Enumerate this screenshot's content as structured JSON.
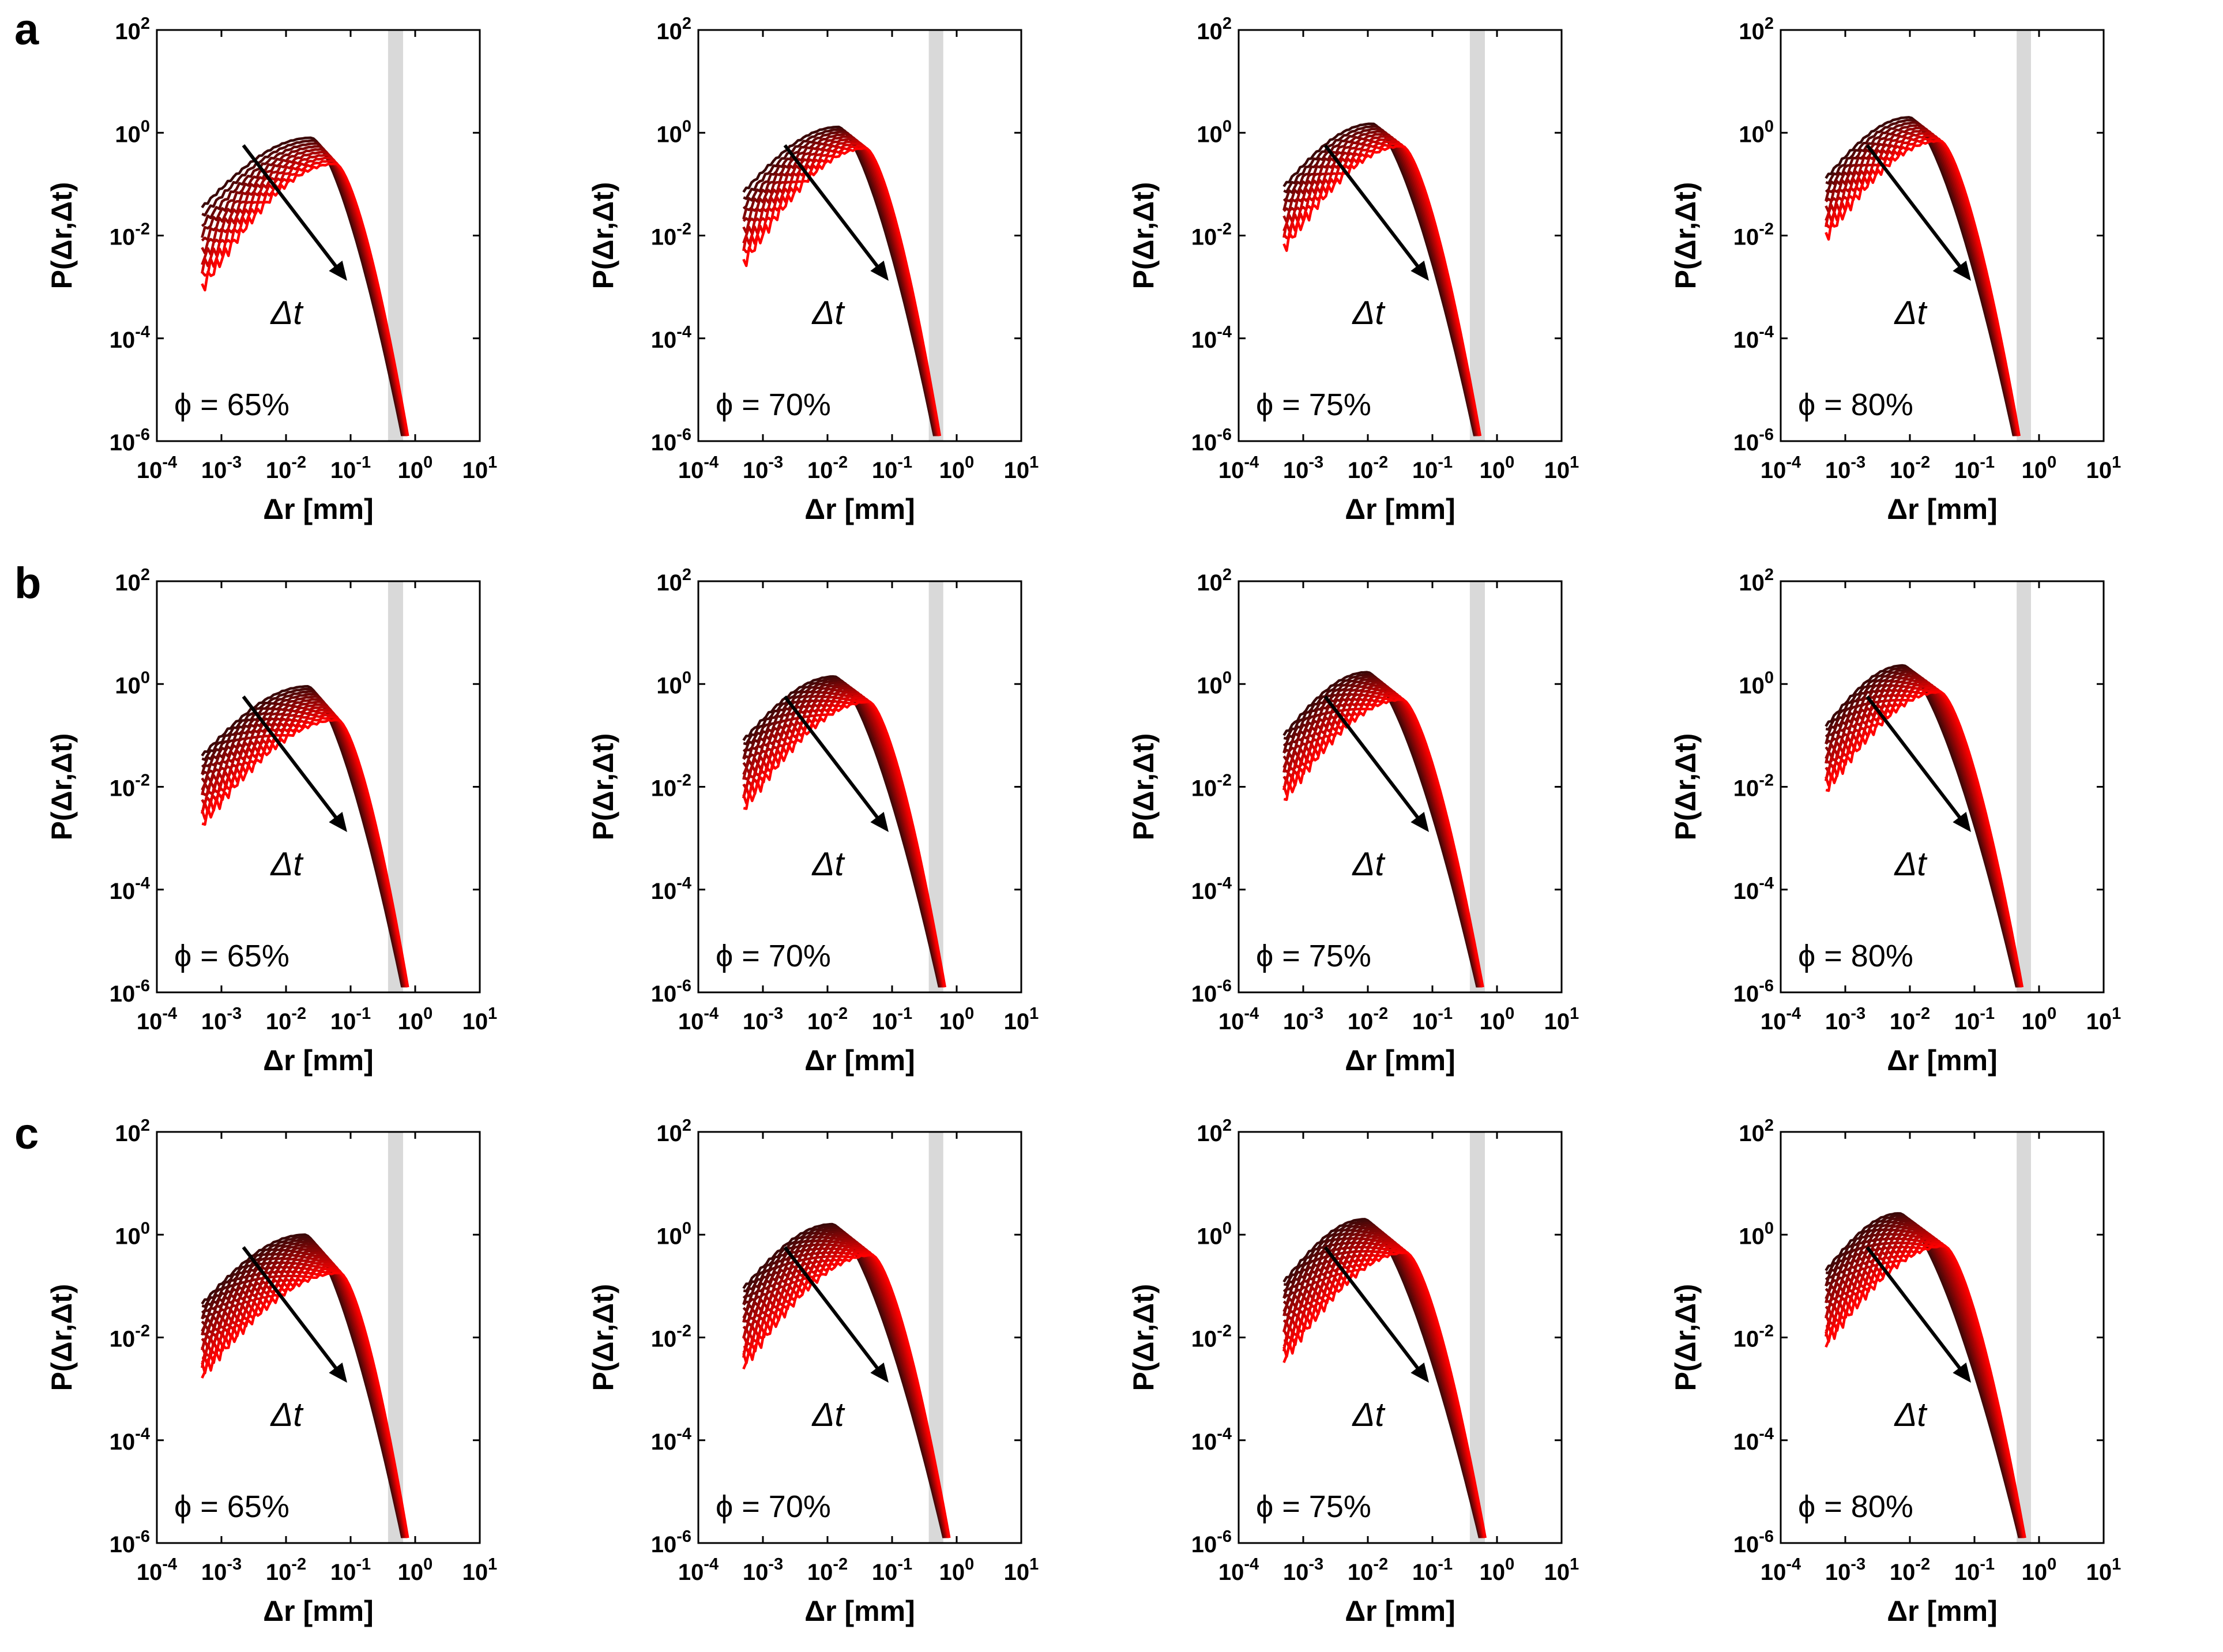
{
  "figure": {
    "rows": [
      {
        "label": "a",
        "max_curves": 10
      },
      {
        "label": "b",
        "max_curves": 14
      },
      {
        "label": "c",
        "max_curves": 18
      }
    ],
    "columns": [
      {
        "phi_label": "ϕ = 65%",
        "phi": 65
      },
      {
        "phi_label": "ϕ = 70%",
        "phi": 70
      },
      {
        "phi_label": "ϕ = 75%",
        "phi": 75
      },
      {
        "phi_label": "ϕ = 80%",
        "phi": 80
      }
    ],
    "xlabel": "Δr [mm]",
    "ylabel": "P(Δr,Δt)",
    "arrow_label": "Δt",
    "x_tick_exponents": [
      "-4",
      "-3",
      "-2",
      "-1",
      "0",
      "1"
    ],
    "y_tick_exponents": [
      "2",
      "0",
      "-2",
      "-4",
      "-6"
    ],
    "tick_base": "10",
    "colors": {
      "dark": "#3a0808",
      "bright": "#ff0000",
      "band": "#d9d9d9",
      "axis": "#000000"
    }
  },
  "chart_data": {
    "type": "line",
    "scale": "log-log",
    "xlabel": "Δr [mm]",
    "ylabel": "P(Δr,Δt)",
    "xlim": [
      0.0001,
      10
    ],
    "ylim": [
      1e-06,
      100
    ],
    "curve_start_x": 0.0005,
    "shaded_band_x": {
      "65": [
        0.38,
        0.65
      ],
      "70": [
        0.37,
        0.62
      ],
      "75": [
        0.38,
        0.65
      ],
      "80": [
        0.45,
        0.75
      ]
    },
    "series_description": "Family of curves for increasing Δt (dark red to bright red) per panel",
    "panels": [
      {
        "row": "a",
        "phi": 65,
        "n_curves": 10,
        "peak_x_first": 0.025,
        "peak_y_first": 0.8,
        "peak_x_last": 0.06,
        "peak_y_last": 0.25,
        "left_y_first": 0.035,
        "left_y_last": 0.001,
        "tail_end_x": 0.7
      },
      {
        "row": "a",
        "phi": 70,
        "n_curves": 10,
        "peak_x_first": 0.015,
        "peak_y_first": 1.3,
        "peak_x_last": 0.04,
        "peak_y_last": 0.5,
        "left_y_first": 0.07,
        "left_y_last": 0.003,
        "tail_end_x": 0.5
      },
      {
        "row": "a",
        "phi": 75,
        "n_curves": 10,
        "peak_x_first": 0.012,
        "peak_y_first": 1.5,
        "peak_x_last": 0.035,
        "peak_y_last": 0.55,
        "left_y_first": 0.09,
        "left_y_last": 0.006,
        "tail_end_x": 0.5
      },
      {
        "row": "a",
        "phi": 80,
        "n_curves": 10,
        "peak_x_first": 0.01,
        "peak_y_first": 2.0,
        "peak_x_last": 0.03,
        "peak_y_last": 0.7,
        "left_y_first": 0.13,
        "left_y_last": 0.01,
        "tail_end_x": 0.45
      },
      {
        "row": "b",
        "phi": 65,
        "n_curves": 14,
        "peak_x_first": 0.022,
        "peak_y_first": 0.9,
        "peak_x_last": 0.065,
        "peak_y_last": 0.2,
        "left_y_first": 0.04,
        "left_y_last": 0.002,
        "tail_end_x": 0.7
      },
      {
        "row": "b",
        "phi": 70,
        "n_curves": 14,
        "peak_x_first": 0.013,
        "peak_y_first": 1.4,
        "peak_x_last": 0.045,
        "peak_y_last": 0.45,
        "left_y_first": 0.08,
        "left_y_last": 0.004,
        "tail_end_x": 0.6
      },
      {
        "row": "b",
        "phi": 75,
        "n_curves": 14,
        "peak_x_first": 0.01,
        "peak_y_first": 1.7,
        "peak_x_last": 0.035,
        "peak_y_last": 0.5,
        "left_y_first": 0.1,
        "left_y_last": 0.006,
        "tail_end_x": 0.55
      },
      {
        "row": "b",
        "phi": 80,
        "n_curves": 14,
        "peak_x_first": 0.008,
        "peak_y_first": 2.3,
        "peak_x_last": 0.03,
        "peak_y_last": 0.7,
        "left_y_first": 0.15,
        "left_y_last": 0.009,
        "tail_end_x": 0.5
      },
      {
        "row": "c",
        "phi": 65,
        "n_curves": 18,
        "peak_x_first": 0.02,
        "peak_y_first": 1.0,
        "peak_x_last": 0.07,
        "peak_y_last": 0.18,
        "left_y_first": 0.045,
        "left_y_last": 0.002,
        "tail_end_x": 0.7
      },
      {
        "row": "c",
        "phi": 70,
        "n_curves": 18,
        "peak_x_first": 0.012,
        "peak_y_first": 1.6,
        "peak_x_last": 0.05,
        "peak_y_last": 0.4,
        "left_y_first": 0.09,
        "left_y_last": 0.003,
        "tail_end_x": 0.7
      },
      {
        "row": "c",
        "phi": 75,
        "n_curves": 18,
        "peak_x_first": 0.009,
        "peak_y_first": 2.0,
        "peak_x_last": 0.04,
        "peak_y_last": 0.45,
        "left_y_first": 0.12,
        "left_y_last": 0.004,
        "tail_end_x": 0.6
      },
      {
        "row": "c",
        "phi": 80,
        "n_curves": 18,
        "peak_x_first": 0.007,
        "peak_y_first": 2.6,
        "peak_x_last": 0.035,
        "peak_y_last": 0.6,
        "left_y_first": 0.2,
        "left_y_last": 0.008,
        "tail_end_x": 0.55
      }
    ]
  }
}
